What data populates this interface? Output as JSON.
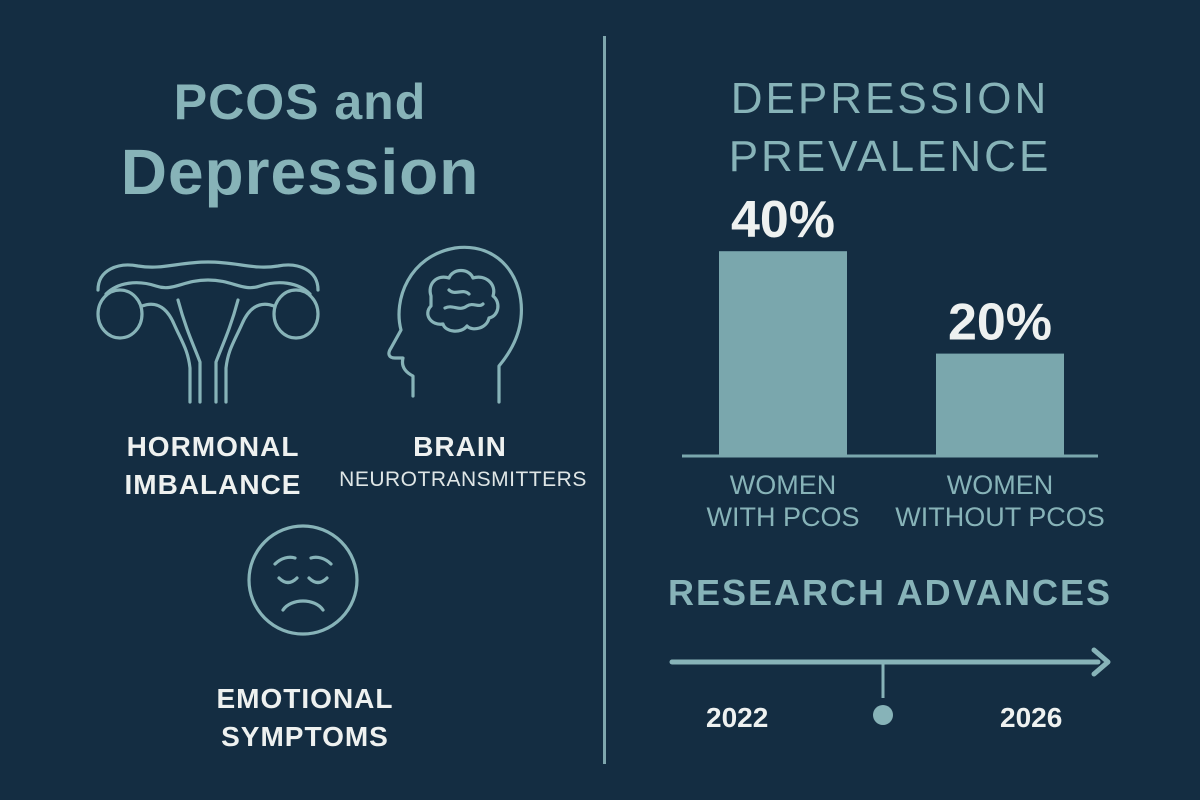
{
  "left": {
    "title_line1": "PCOS and",
    "title_line2": "Depression",
    "icons": [
      {
        "icon": "uterus-icon",
        "label_line1": "HORMONAL",
        "label_line2": "IMBALANCE"
      },
      {
        "icon": "head-brain-icon",
        "label_line1": "BRAIN",
        "label_line2": "NEUROTRANSMITTERS"
      },
      {
        "icon": "sad-face-icon",
        "label_line1": "EMOTIONAL",
        "label_line2": "SYMPTOMS"
      }
    ]
  },
  "chart_data": {
    "type": "bar",
    "title_line1": "DEPRESSION",
    "title_line2": "PREVALENCE",
    "categories": [
      [
        "WOMEN",
        "WITH PCOS"
      ],
      [
        "WOMEN",
        "WITHOUT PCOS"
      ]
    ],
    "values": [
      40,
      20
    ],
    "value_labels": [
      "40%",
      "20%"
    ],
    "ylim": [
      0,
      50
    ],
    "color": "#7aa7ad"
  },
  "timeline": {
    "title": "RESEARCH ADVANCES",
    "start_label": "2022",
    "end_label": "2026"
  },
  "colors": {
    "background": "#142d42",
    "accent": "#87b3b8",
    "text_light": "#eef1f0"
  }
}
